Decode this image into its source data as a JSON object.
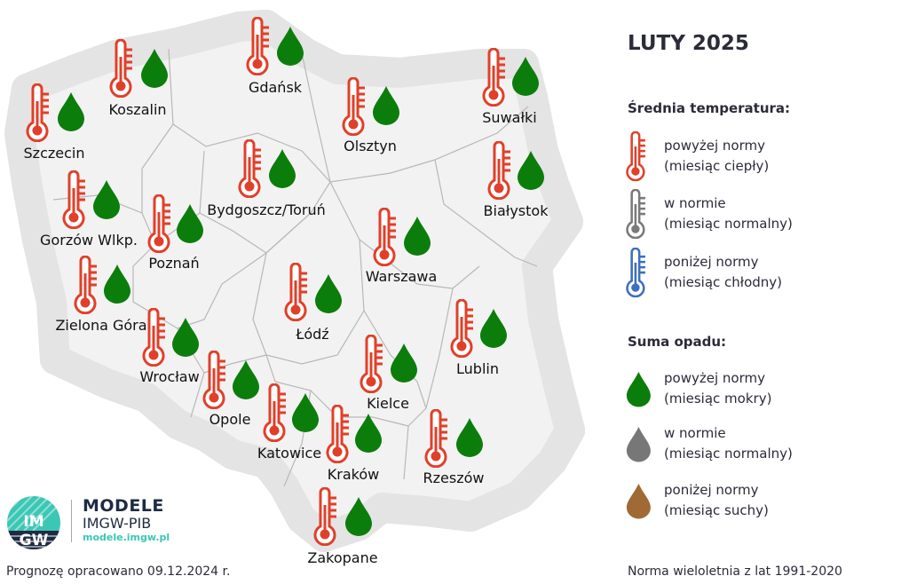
{
  "title": "LUTY 2025",
  "legend": {
    "temp_heading": "Średnia temperatura:",
    "temp_items": [
      {
        "line1": "powyżej normy",
        "line2": "(miesiąc ciepły)",
        "color": "#e0402a"
      },
      {
        "line1": "w normie",
        "line2": "(miesiąc normalny)",
        "color": "#7a7a7a"
      },
      {
        "line1": "poniżej normy",
        "line2": "(miesiąc chłodny)",
        "color": "#3d6fbf"
      }
    ],
    "precip_heading": "Suma opadu:",
    "precip_items": [
      {
        "line1": "powyżej normy",
        "line2": "(miesiąc mokry)",
        "color": "#0b7d0b"
      },
      {
        "line1": "w normie",
        "line2": "(miesiąc normalny)",
        "color": "#777777"
      },
      {
        "line1": "poniżej normy",
        "line2": "(miesiąc suchy)",
        "color": "#a06a35"
      }
    ]
  },
  "cities": [
    {
      "name": "Szczecin",
      "temperature": "powyżej normy",
      "precipitation": "powyżej normy"
    },
    {
      "name": "Koszalin",
      "temperature": "powyżej normy",
      "precipitation": "powyżej normy"
    },
    {
      "name": "Gdańsk",
      "temperature": "powyżej normy",
      "precipitation": "powyżej normy"
    },
    {
      "name": "Olsztyn",
      "temperature": "powyżej normy",
      "precipitation": "powyżej normy"
    },
    {
      "name": "Suwałki",
      "temperature": "powyżej normy",
      "precipitation": "powyżej normy"
    },
    {
      "name": "Białystok",
      "temperature": "powyżej normy",
      "precipitation": "powyżej normy"
    },
    {
      "name": "Bydgoszcz/Toruń",
      "temperature": "powyżej normy",
      "precipitation": "powyżej normy"
    },
    {
      "name": "Gorzów Wlkp.",
      "temperature": "powyżej normy",
      "precipitation": "powyżej normy"
    },
    {
      "name": "Poznań",
      "temperature": "powyżej normy",
      "precipitation": "powyżej normy"
    },
    {
      "name": "Warszawa",
      "temperature": "powyżej normy",
      "precipitation": "powyżej normy"
    },
    {
      "name": "Zielona Góra",
      "temperature": "powyżej normy",
      "precipitation": "powyżej normy"
    },
    {
      "name": "Łódź",
      "temperature": "powyżej normy",
      "precipitation": "powyżej normy"
    },
    {
      "name": "Lublin",
      "temperature": "powyżej normy",
      "precipitation": "powyżej normy"
    },
    {
      "name": "Wrocław",
      "temperature": "powyżej normy",
      "precipitation": "powyżej normy"
    },
    {
      "name": "Kielce",
      "temperature": "powyżej normy",
      "precipitation": "powyżej normy"
    },
    {
      "name": "Opole",
      "temperature": "powyżej normy",
      "precipitation": "powyżej normy"
    },
    {
      "name": "Katowice",
      "temperature": "powyżej normy",
      "precipitation": "powyżej normy"
    },
    {
      "name": "Kraków",
      "temperature": "powyżej normy",
      "precipitation": "powyżej normy"
    },
    {
      "name": "Rzeszów",
      "temperature": "powyżej normy",
      "precipitation": "powyżej normy"
    },
    {
      "name": "Zakopane",
      "temperature": "powyżej normy",
      "precipitation": "powyżej normy"
    }
  ],
  "logo": {
    "line1": "MODELE",
    "line2": "IMGW-PIB",
    "url": "modele.imgw.pl",
    "badge": "IMGW"
  },
  "footer": {
    "left": "Prognozę opracowano 09.12.2024 r.",
    "right": "Norma wieloletnia z lat 1991-2020"
  }
}
